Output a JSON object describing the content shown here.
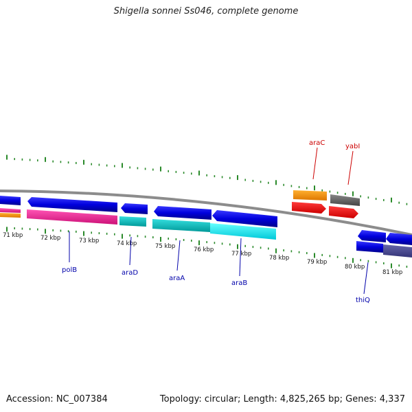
{
  "title": "Shigella sonnei Ss046, complete genome",
  "accession": "Accession: NC_007384",
  "stats": "Topology: circular; Length: 4,825,265 bp; Genes: 4,337",
  "kbp_labels": [
    "71 kbp",
    "72 kbp",
    "73 kbp",
    "74 kbp",
    "75 kbp",
    "76 kbp",
    "77 kbp",
    "78 kbp",
    "79 kbp",
    "80 kbp",
    "81 kbp"
  ],
  "genes": {
    "reverse_strand": [
      {
        "name": "polB",
        "color": "#0000cc"
      },
      {
        "name": "araD",
        "color": "#0000cc"
      },
      {
        "name": "araA",
        "color": "#0000cc"
      },
      {
        "name": "araB",
        "color": "#0000cc"
      },
      {
        "name": "thiQ",
        "color": "#0000cc"
      }
    ],
    "forward_strand": [
      {
        "name": "araC",
        "color": "#cc0000"
      },
      {
        "name": "yabI",
        "color": "#cc0000"
      }
    ]
  },
  "colors": {
    "backbone": "#8c8c8c",
    "tick": "#2a8a2a",
    "reverse_label": "#0000aa",
    "forward_label": "#cc0000"
  }
}
